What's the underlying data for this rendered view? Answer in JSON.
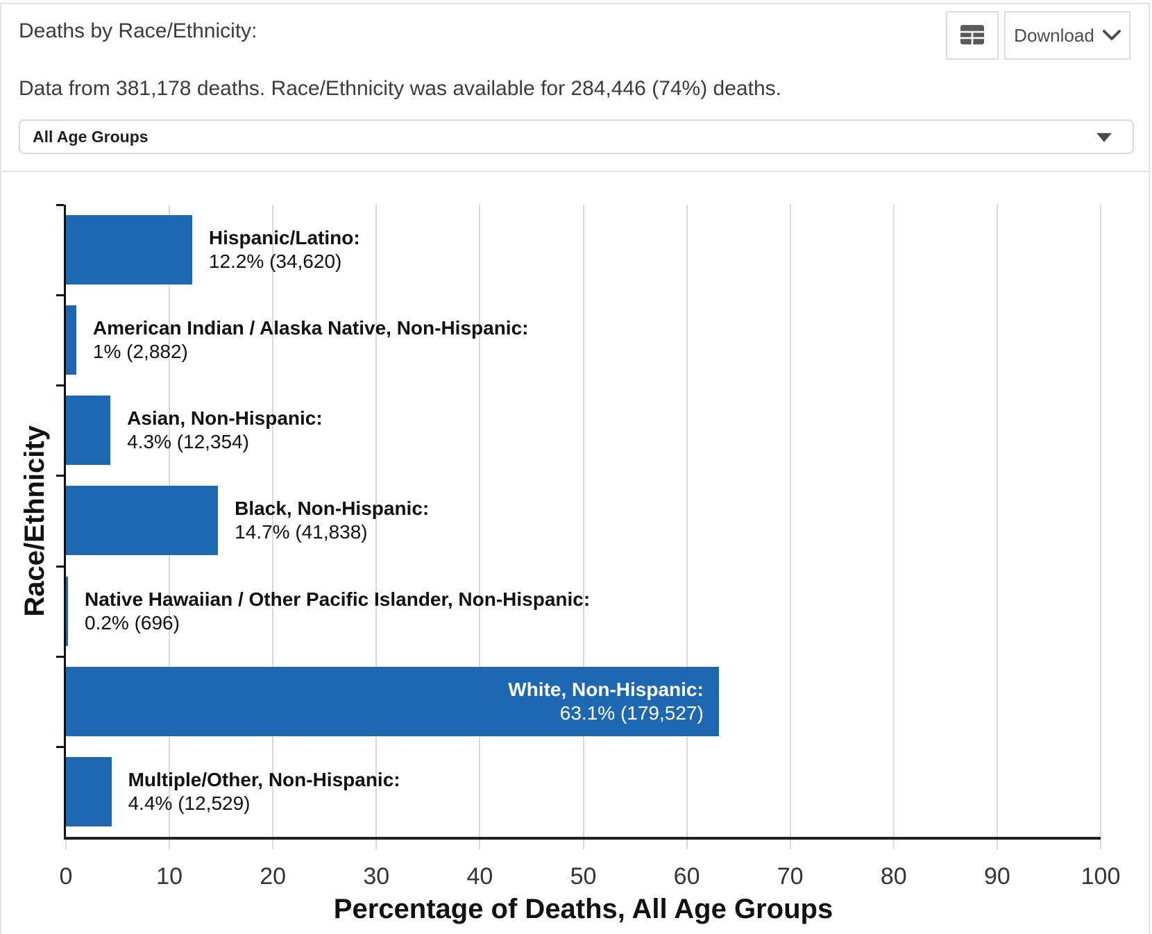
{
  "header": {
    "title": "Deaths by Race/Ethnicity:",
    "subtitle": "Data from 381,178 deaths. Race/Ethnicity was available for 284,446 (74%) deaths.",
    "toolbar": {
      "download_label": "Download"
    },
    "age_group_select": {
      "value": "All Age Groups"
    }
  },
  "chart_data": {
    "type": "bar",
    "orientation": "horizontal",
    "title": "",
    "xlabel": "Percentage of Deaths, All Age Groups",
    "ylabel": "Race/Ethnicity",
    "xlim": [
      0,
      100
    ],
    "x_ticks": [
      0,
      10,
      20,
      30,
      40,
      50,
      60,
      70,
      80,
      90,
      100
    ],
    "grid": true,
    "legend": "none",
    "bar_color": "#1e68b3",
    "grid_color": "#d9d9d9",
    "categories": [
      "Hispanic/Latino:",
      "American Indian / Alaska Native, Non-Hispanic:",
      "Asian, Non-Hispanic:",
      "Black, Non-Hispanic:",
      "Native Hawaiian / Other Pacific Islander, Non-Hispanic:",
      "White, Non-Hispanic:",
      "Multiple/Other, Non-Hispanic:"
    ],
    "values": [
      12.2,
      1,
      4.3,
      14.7,
      0.2,
      63.1,
      4.4
    ],
    "bars": [
      {
        "name": "Hispanic/Latino:",
        "pct": 12.2,
        "count": "34,620",
        "value_text": "12.2% (34,620)",
        "label_inside": false
      },
      {
        "name": "American Indian / Alaska Native, Non-Hispanic:",
        "pct": 1,
        "count": "2,882",
        "value_text": "1% (2,882)",
        "label_inside": false
      },
      {
        "name": "Asian, Non-Hispanic:",
        "pct": 4.3,
        "count": "12,354",
        "value_text": "4.3% (12,354)",
        "label_inside": false
      },
      {
        "name": "Black, Non-Hispanic:",
        "pct": 14.7,
        "count": "41,838",
        "value_text": "14.7% (41,838)",
        "label_inside": false
      },
      {
        "name": "Native Hawaiian / Other Pacific Islander, Non-Hispanic:",
        "pct": 0.2,
        "count": "696",
        "value_text": "0.2% (696)",
        "label_inside": false
      },
      {
        "name": "White, Non-Hispanic:",
        "pct": 63.1,
        "count": "179,527",
        "value_text": "63.1% (179,527)",
        "label_inside": true
      },
      {
        "name": "Multiple/Other, Non-Hispanic:",
        "pct": 4.4,
        "count": "12,529",
        "value_text": "4.4% (12,529)",
        "label_inside": false
      }
    ]
  }
}
